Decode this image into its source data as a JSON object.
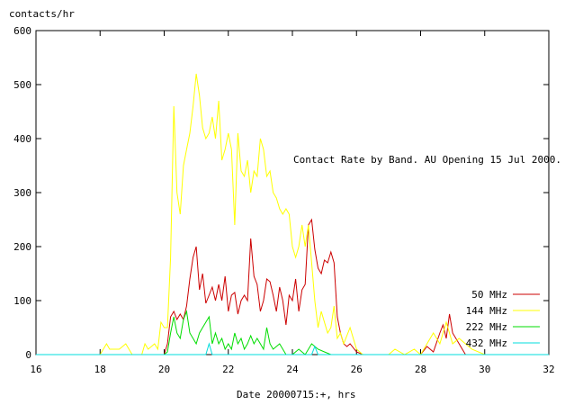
{
  "chart_data": {
    "type": "line",
    "title": "Contact Rate by Band. AU Opening 15 Jul 2000.",
    "xlabel": "Date  20000715:+, hrs",
    "ylabel": "contacts/hr",
    "xlim": [
      16,
      32
    ],
    "ylim": [
      0,
      600
    ],
    "xticks": [
      16,
      18,
      20,
      22,
      24,
      26,
      28,
      30,
      32
    ],
    "yticks": [
      0,
      100,
      200,
      300,
      400,
      500,
      600
    ],
    "grid": false,
    "legend_position": "bottom-right",
    "series": [
      {
        "name": "50 MHz",
        "color": "#cc0000",
        "points": [
          [
            16,
            0
          ],
          [
            20,
            0
          ],
          [
            20.1,
            20
          ],
          [
            20.2,
            70
          ],
          [
            20.3,
            80
          ],
          [
            20.4,
            65
          ],
          [
            20.5,
            75
          ],
          [
            20.6,
            65
          ],
          [
            20.7,
            90
          ],
          [
            20.8,
            140
          ],
          [
            20.9,
            180
          ],
          [
            21.0,
            200
          ],
          [
            21.1,
            120
          ],
          [
            21.2,
            150
          ],
          [
            21.3,
            95
          ],
          [
            21.4,
            110
          ],
          [
            21.5,
            125
          ],
          [
            21.6,
            100
          ],
          [
            21.7,
            130
          ],
          [
            21.8,
            100
          ],
          [
            21.9,
            145
          ],
          [
            22.0,
            80
          ],
          [
            22.1,
            110
          ],
          [
            22.2,
            115
          ],
          [
            22.3,
            75
          ],
          [
            22.4,
            100
          ],
          [
            22.5,
            110
          ],
          [
            22.6,
            100
          ],
          [
            22.7,
            215
          ],
          [
            22.8,
            145
          ],
          [
            22.9,
            130
          ],
          [
            23.0,
            80
          ],
          [
            23.1,
            100
          ],
          [
            23.2,
            140
          ],
          [
            23.3,
            135
          ],
          [
            23.4,
            110
          ],
          [
            23.5,
            80
          ],
          [
            23.6,
            125
          ],
          [
            23.7,
            100
          ],
          [
            23.8,
            55
          ],
          [
            23.9,
            110
          ],
          [
            24.0,
            100
          ],
          [
            24.1,
            140
          ],
          [
            24.2,
            80
          ],
          [
            24.3,
            120
          ],
          [
            24.4,
            130
          ],
          [
            24.5,
            240
          ],
          [
            24.6,
            250
          ],
          [
            24.7,
            195
          ],
          [
            24.8,
            160
          ],
          [
            24.9,
            150
          ],
          [
            25.0,
            175
          ],
          [
            25.1,
            170
          ],
          [
            25.2,
            190
          ],
          [
            25.3,
            170
          ],
          [
            25.4,
            70
          ],
          [
            25.5,
            40
          ],
          [
            25.6,
            20
          ],
          [
            25.7,
            15
          ],
          [
            25.8,
            20
          ],
          [
            26.0,
            5
          ],
          [
            26.2,
            0
          ],
          [
            28.0,
            0
          ],
          [
            28.2,
            15
          ],
          [
            28.4,
            5
          ],
          [
            28.6,
            40
          ],
          [
            28.7,
            55
          ],
          [
            28.8,
            30
          ],
          [
            28.9,
            75
          ],
          [
            29.0,
            40
          ],
          [
            29.2,
            20
          ],
          [
            29.4,
            0
          ],
          [
            32,
            0
          ]
        ]
      },
      {
        "name": "144 MHz",
        "color": "#ffff00",
        "points": [
          [
            16,
            0
          ],
          [
            18.0,
            0
          ],
          [
            18.1,
            10
          ],
          [
            18.2,
            20
          ],
          [
            18.3,
            10
          ],
          [
            18.6,
            10
          ],
          [
            18.8,
            20
          ],
          [
            19.0,
            0
          ],
          [
            19.3,
            0
          ],
          [
            19.4,
            20
          ],
          [
            19.5,
            10
          ],
          [
            19.7,
            20
          ],
          [
            19.8,
            10
          ],
          [
            19.9,
            60
          ],
          [
            20.0,
            50
          ],
          [
            20.1,
            50
          ],
          [
            20.2,
            180
          ],
          [
            20.3,
            460
          ],
          [
            20.4,
            300
          ],
          [
            20.5,
            260
          ],
          [
            20.6,
            350
          ],
          [
            20.7,
            380
          ],
          [
            20.8,
            410
          ],
          [
            20.9,
            460
          ],
          [
            21.0,
            520
          ],
          [
            21.1,
            480
          ],
          [
            21.2,
            420
          ],
          [
            21.3,
            400
          ],
          [
            21.4,
            410
          ],
          [
            21.5,
            440
          ],
          [
            21.6,
            400
          ],
          [
            21.7,
            470
          ],
          [
            21.8,
            360
          ],
          [
            21.9,
            380
          ],
          [
            22.0,
            410
          ],
          [
            22.1,
            380
          ],
          [
            22.2,
            240
          ],
          [
            22.3,
            410
          ],
          [
            22.4,
            340
          ],
          [
            22.5,
            330
          ],
          [
            22.6,
            360
          ],
          [
            22.7,
            300
          ],
          [
            22.8,
            340
          ],
          [
            22.9,
            330
          ],
          [
            23.0,
            400
          ],
          [
            23.1,
            380
          ],
          [
            23.2,
            330
          ],
          [
            23.3,
            340
          ],
          [
            23.4,
            300
          ],
          [
            23.5,
            290
          ],
          [
            23.6,
            270
          ],
          [
            23.7,
            260
          ],
          [
            23.8,
            270
          ],
          [
            23.9,
            260
          ],
          [
            24.0,
            200
          ],
          [
            24.1,
            180
          ],
          [
            24.2,
            200
          ],
          [
            24.3,
            240
          ],
          [
            24.4,
            200
          ],
          [
            24.5,
            240
          ],
          [
            24.6,
            170
          ],
          [
            24.7,
            100
          ],
          [
            24.8,
            50
          ],
          [
            24.9,
            80
          ],
          [
            25.0,
            60
          ],
          [
            25.1,
            40
          ],
          [
            25.2,
            50
          ],
          [
            25.3,
            90
          ],
          [
            25.4,
            30
          ],
          [
            25.5,
            40
          ],
          [
            25.6,
            20
          ],
          [
            25.8,
            50
          ],
          [
            26.0,
            10
          ],
          [
            26.2,
            0
          ],
          [
            27.0,
            0
          ],
          [
            27.2,
            10
          ],
          [
            27.5,
            0
          ],
          [
            27.8,
            10
          ],
          [
            28.0,
            0
          ],
          [
            28.4,
            40
          ],
          [
            28.6,
            20
          ],
          [
            28.8,
            60
          ],
          [
            29.0,
            20
          ],
          [
            29.2,
            30
          ],
          [
            29.4,
            20
          ],
          [
            29.6,
            10
          ],
          [
            30.0,
            0
          ],
          [
            32,
            0
          ]
        ]
      },
      {
        "name": "222 MHz",
        "color": "#00dd00",
        "points": [
          [
            16,
            0
          ],
          [
            20,
            0
          ],
          [
            20.1,
            5
          ],
          [
            20.2,
            40
          ],
          [
            20.3,
            70
          ],
          [
            20.4,
            40
          ],
          [
            20.5,
            30
          ],
          [
            20.6,
            65
          ],
          [
            20.7,
            80
          ],
          [
            20.8,
            40
          ],
          [
            20.9,
            30
          ],
          [
            21.0,
            20
          ],
          [
            21.1,
            40
          ],
          [
            21.2,
            50
          ],
          [
            21.3,
            60
          ],
          [
            21.4,
            70
          ],
          [
            21.5,
            20
          ],
          [
            21.6,
            40
          ],
          [
            21.7,
            20
          ],
          [
            21.8,
            30
          ],
          [
            21.9,
            10
          ],
          [
            22.0,
            20
          ],
          [
            22.1,
            10
          ],
          [
            22.2,
            40
          ],
          [
            22.3,
            20
          ],
          [
            22.4,
            30
          ],
          [
            22.5,
            10
          ],
          [
            22.6,
            20
          ],
          [
            22.7,
            35
          ],
          [
            22.8,
            20
          ],
          [
            22.9,
            30
          ],
          [
            23.0,
            20
          ],
          [
            23.1,
            10
          ],
          [
            23.2,
            50
          ],
          [
            23.3,
            20
          ],
          [
            23.4,
            10
          ],
          [
            23.6,
            20
          ],
          [
            23.8,
            0
          ],
          [
            24.0,
            0
          ],
          [
            24.2,
            10
          ],
          [
            24.4,
            0
          ],
          [
            24.6,
            20
          ],
          [
            24.8,
            10
          ],
          [
            25.0,
            5
          ],
          [
            25.2,
            0
          ],
          [
            32,
            0
          ]
        ]
      },
      {
        "name": "432 MHz",
        "color": "#00dddd",
        "points": [
          [
            16,
            0
          ],
          [
            21.3,
            0
          ],
          [
            21.4,
            20
          ],
          [
            21.5,
            0
          ],
          [
            24.6,
            0
          ],
          [
            24.7,
            15
          ],
          [
            24.8,
            0
          ],
          [
            32,
            0
          ]
        ]
      }
    ]
  }
}
